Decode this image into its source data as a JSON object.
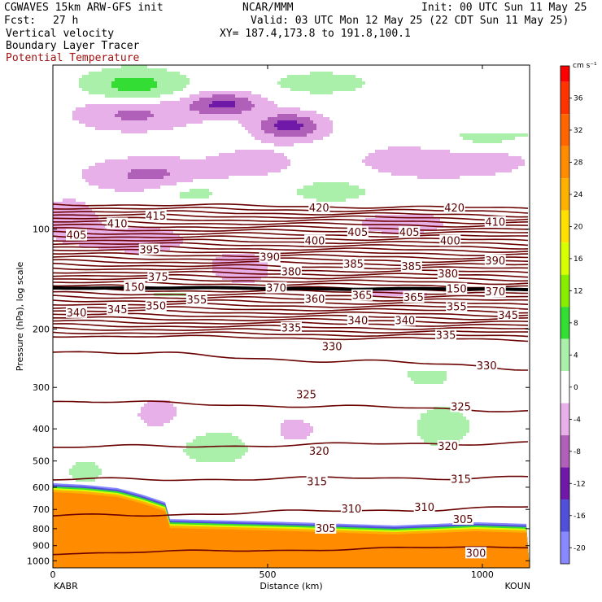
{
  "header": {
    "model": "CGWAVES 15km ARW-GFS init",
    "org": "NCAR/MMM",
    "init": "Init: 00 UTC Sun 11 May 25",
    "fcst_label": "Fcst:",
    "fcst_value": "27 h",
    "valid": "Valid: 03 UTC Mon 12 May 25 (22 CDT Sun 11 May 25)",
    "field1": "Vertical velocity",
    "xy": "XY= 187.4,173.8 to 191.8,100.1",
    "field2": "Boundary Layer Tracer",
    "field3": "Potential Temperature"
  },
  "colors": {
    "theta": "#6b0000",
    "theta_label": "#5a0000",
    "field3_text": "#a01010"
  },
  "chart_data": {
    "type": "cross-section",
    "title": "",
    "xlabel": "Distance (km)",
    "ylabel": "Pressure (hPa), log scale",
    "x_ticks": [
      0,
      500,
      1000
    ],
    "x_tick_labels": [
      "0",
      "500",
      "1000"
    ],
    "xlim": [
      0,
      1110
    ],
    "y_ticks": [
      100,
      200,
      300,
      400,
      500,
      600,
      700,
      800,
      900,
      1000
    ],
    "y_tick_labels": [
      "100",
      "200",
      "300",
      "400",
      "500",
      "600",
      "700",
      "800",
      "900",
      "1000"
    ],
    "ylim": [
      1050,
      32
    ],
    "y_scale": "log",
    "endpoints": {
      "left": "KABR",
      "right": "KOUN"
    },
    "colorbar": {
      "units": "cm s⁻¹",
      "labels": [
        "36",
        "32",
        "28",
        "24",
        "20",
        "16",
        "12",
        "8",
        "4",
        "0",
        "-4",
        "-8",
        "-12",
        "-16",
        "-20"
      ],
      "label_values": [
        36,
        32,
        28,
        24,
        20,
        16,
        12,
        8,
        4,
        0,
        -4,
        -8,
        -12,
        -16,
        -20
      ],
      "vmin": -22,
      "vmax": 40,
      "bins": [
        {
          "lo": 38,
          "hi": 40,
          "color": "#ff0000"
        },
        {
          "lo": 34,
          "hi": 38,
          "color": "#ff3300"
        },
        {
          "lo": 30,
          "hi": 34,
          "color": "#ff6600"
        },
        {
          "lo": 26,
          "hi": 30,
          "color": "#ff8c00"
        },
        {
          "lo": 22,
          "hi": 26,
          "color": "#ffb000"
        },
        {
          "lo": 18,
          "hi": 22,
          "color": "#ffe000"
        },
        {
          "lo": 14,
          "hi": 18,
          "color": "#d8ff00"
        },
        {
          "lo": 10,
          "hi": 14,
          "color": "#88ee00"
        },
        {
          "lo": 6,
          "hi": 10,
          "color": "#33dd33"
        },
        {
          "lo": 2,
          "hi": 6,
          "color": "#aaf0aa"
        },
        {
          "lo": -2,
          "hi": 2,
          "color": "#ffffff"
        },
        {
          "lo": -6,
          "hi": -2,
          "color": "#e8b0e8"
        },
        {
          "lo": -10,
          "hi": -6,
          "color": "#b060b8"
        },
        {
          "lo": -14,
          "hi": -10,
          "color": "#7018a8"
        },
        {
          "lo": -18,
          "hi": -14,
          "color": "#5050d8"
        },
        {
          "lo": -22,
          "hi": -18,
          "color": "#8888ff"
        }
      ]
    },
    "theta_labels": [
      {
        "text": "420",
        "x": 620,
        "p": 86
      },
      {
        "text": "420",
        "x": 935,
        "p": 86
      },
      {
        "text": "415",
        "x": 240,
        "p": 91
      },
      {
        "text": "410",
        "x": 150,
        "p": 96
      },
      {
        "text": "410",
        "x": 1030,
        "p": 95
      },
      {
        "text": "405",
        "x": 55,
        "p": 104
      },
      {
        "text": "405",
        "x": 710,
        "p": 102
      },
      {
        "text": "405",
        "x": 830,
        "p": 102
      },
      {
        "text": "400",
        "x": 610,
        "p": 108
      },
      {
        "text": "400",
        "x": 925,
        "p": 108
      },
      {
        "text": "395",
        "x": 225,
        "p": 115
      },
      {
        "text": "390",
        "x": 505,
        "p": 121
      },
      {
        "text": "390",
        "x": 1030,
        "p": 124
      },
      {
        "text": "385",
        "x": 700,
        "p": 127
      },
      {
        "text": "385",
        "x": 835,
        "p": 129
      },
      {
        "text": "380",
        "x": 555,
        "p": 134
      },
      {
        "text": "380",
        "x": 920,
        "p": 136
      },
      {
        "text": "375",
        "x": 245,
        "p": 139
      },
      {
        "text": "370",
        "x": 520,
        "p": 150
      },
      {
        "text": "370",
        "x": 1030,
        "p": 154
      },
      {
        "text": "365",
        "x": 720,
        "p": 158
      },
      {
        "text": "365",
        "x": 840,
        "p": 160
      },
      {
        "text": "360",
        "x": 610,
        "p": 162
      },
      {
        "text": "355",
        "x": 335,
        "p": 163
      },
      {
        "text": "355",
        "x": 940,
        "p": 171
      },
      {
        "text": "350",
        "x": 240,
        "p": 170
      },
      {
        "text": "345",
        "x": 150,
        "p": 174
      },
      {
        "text": "345",
        "x": 1060,
        "p": 181
      },
      {
        "text": "340",
        "x": 55,
        "p": 178
      },
      {
        "text": "340",
        "x": 710,
        "p": 188
      },
      {
        "text": "340",
        "x": 820,
        "p": 188
      },
      {
        "text": "335",
        "x": 555,
        "p": 198
      },
      {
        "text": "335",
        "x": 915,
        "p": 208
      },
      {
        "text": "330",
        "x": 650,
        "p": 225
      },
      {
        "text": "330",
        "x": 1010,
        "p": 257
      },
      {
        "text": "325",
        "x": 590,
        "p": 314
      },
      {
        "text": "325",
        "x": 950,
        "p": 342
      },
      {
        "text": "320",
        "x": 620,
        "p": 466
      },
      {
        "text": "320",
        "x": 920,
        "p": 450
      },
      {
        "text": "315",
        "x": 615,
        "p": 575
      },
      {
        "text": "315",
        "x": 950,
        "p": 566
      },
      {
        "text": "310",
        "x": 695,
        "p": 695
      },
      {
        "text": "310",
        "x": 865,
        "p": 688
      },
      {
        "text": "305",
        "x": 635,
        "p": 796
      },
      {
        "text": "305",
        "x": 955,
        "p": 748
      },
      {
        "text": "300",
        "x": 985,
        "p": 945
      },
      {
        "text": "150",
        "x": 190,
        "p": 149
      },
      {
        "text": "150",
        "x": 940,
        "p": 151
      }
    ]
  }
}
